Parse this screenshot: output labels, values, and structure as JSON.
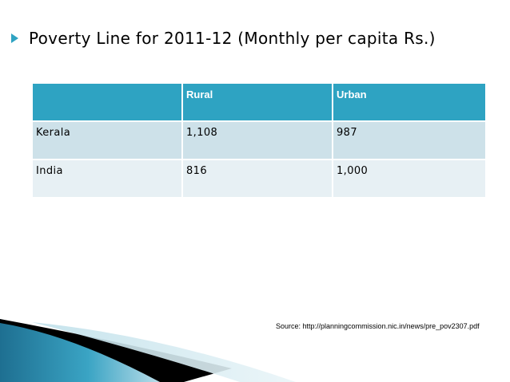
{
  "slide": {
    "title": "Poverty Line for 2011-12 (Monthly per capita Rs.)",
    "source": "Source: http://planningcommission.nic.in/news/pre_pov2307.pdf"
  },
  "table": {
    "headers": [
      "",
      "Rural",
      "Urban"
    ],
    "rows": [
      [
        "Kerala",
        "1,108",
        "987"
      ],
      [
        "India",
        "816",
        "1,000"
      ]
    ]
  },
  "colors": {
    "accent": "#2ea3c2",
    "row_dark": "#cde1e9",
    "row_light": "#e7f0f4"
  },
  "icons": {
    "bullet": "triangle-bullet-icon"
  }
}
